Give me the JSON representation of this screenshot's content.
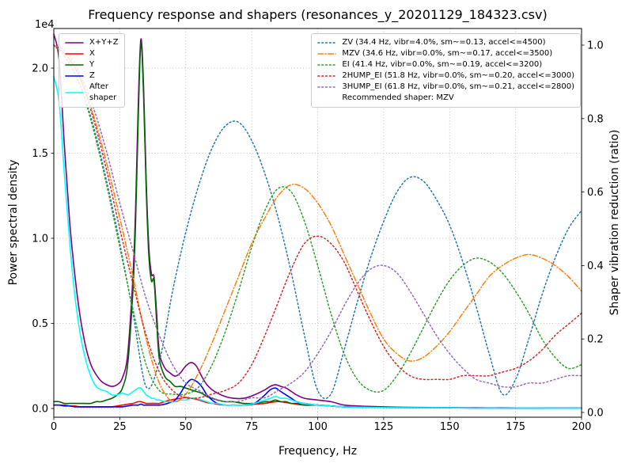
{
  "chart_data": {
    "type": "line",
    "title": "Frequency response and shapers (resonances_y_20201129_184323.csv)",
    "x_label": "Frequency, Hz",
    "x_ticks": [
      0,
      25,
      50,
      75,
      100,
      125,
      150,
      175,
      200
    ],
    "x_range": [
      0,
      200
    ],
    "grid": true,
    "y_left": {
      "label": "Power spectral density",
      "offset_text": "1e4",
      "ticks": [
        0.0,
        0.5,
        1.0,
        1.5,
        2.0
      ],
      "range": [
        -0.05,
        2.23
      ],
      "units": "1e4"
    },
    "y_right": {
      "label": "Shaper vibration reduction (ratio)",
      "ticks": [
        0.0,
        0.2,
        0.4,
        0.6,
        0.8,
        1.0
      ],
      "range": [
        -0.013,
        1.045
      ]
    },
    "psd": {
      "x": [
        0,
        2,
        4,
        6,
        8,
        10,
        12,
        14,
        16,
        18,
        20,
        22,
        24,
        26,
        28,
        30,
        31,
        32,
        33,
        34,
        35,
        36,
        37,
        38,
        39,
        40,
        42,
        44,
        46,
        48,
        50,
        52,
        54,
        56,
        58,
        60,
        62,
        65,
        68,
        72,
        76,
        80,
        82,
        84,
        86,
        88,
        90,
        92,
        95,
        100,
        105,
        110,
        115,
        120,
        130,
        140,
        150,
        160,
        170,
        180,
        190,
        200
      ],
      "series": [
        {
          "name": "X+Y+Z",
          "color": "#800080",
          "style": "solid",
          "values": [
            2.2,
            2.05,
            1.55,
            1.1,
            0.78,
            0.54,
            0.37,
            0.26,
            0.2,
            0.16,
            0.14,
            0.13,
            0.14,
            0.18,
            0.32,
            0.78,
            1.18,
            1.78,
            2.17,
            1.9,
            1.35,
            0.95,
            0.79,
            0.77,
            0.55,
            0.33,
            0.24,
            0.21,
            0.19,
            0.21,
            0.25,
            0.27,
            0.25,
            0.19,
            0.14,
            0.11,
            0.09,
            0.07,
            0.06,
            0.06,
            0.08,
            0.11,
            0.13,
            0.14,
            0.13,
            0.12,
            0.1,
            0.08,
            0.06,
            0.05,
            0.04,
            0.02,
            0.015,
            0.012,
            0.008,
            0.006,
            0.005,
            0.004,
            0.004,
            0.003,
            0.003,
            0.003
          ]
        },
        {
          "name": "X",
          "color": "#ff0000",
          "style": "solid",
          "values": [
            0.02,
            0.02,
            0.02,
            0.015,
            0.015,
            0.01,
            0.01,
            0.01,
            0.01,
            0.01,
            0.01,
            0.01,
            0.015,
            0.02,
            0.025,
            0.03,
            0.035,
            0.04,
            0.04,
            0.035,
            0.03,
            0.03,
            0.03,
            0.03,
            0.03,
            0.03,
            0.04,
            0.05,
            0.055,
            0.06,
            0.065,
            0.06,
            0.055,
            0.045,
            0.035,
            0.03,
            0.025,
            0.02,
            0.02,
            0.02,
            0.025,
            0.03,
            0.035,
            0.04,
            0.04,
            0.035,
            0.03,
            0.025,
            0.02,
            0.02,
            0.015,
            0.01,
            0.01,
            0.008,
            0.006,
            0.005,
            0.004,
            0.004,
            0.003,
            0.003,
            0.003,
            0.003
          ]
        },
        {
          "name": "Y",
          "color": "#006400",
          "style": "solid",
          "values": [
            0.04,
            0.04,
            0.03,
            0.03,
            0.03,
            0.03,
            0.03,
            0.03,
            0.04,
            0.04,
            0.05,
            0.06,
            0.08,
            0.12,
            0.26,
            0.7,
            1.1,
            1.7,
            2.15,
            1.85,
            1.3,
            0.9,
            0.75,
            0.75,
            0.5,
            0.29,
            0.19,
            0.16,
            0.13,
            0.13,
            0.12,
            0.11,
            0.1,
            0.09,
            0.07,
            0.06,
            0.05,
            0.04,
            0.04,
            0.03,
            0.03,
            0.04,
            0.04,
            0.05,
            0.04,
            0.04,
            0.03,
            0.03,
            0.02,
            0.02,
            0.015,
            0.01,
            0.01,
            0.008,
            0.006,
            0.005,
            0.004,
            0.003,
            0.003,
            0.002,
            0.002,
            0.002
          ]
        },
        {
          "name": "Z",
          "color": "#0000ff",
          "style": "solid",
          "values": [
            0.02,
            0.02,
            0.015,
            0.015,
            0.01,
            0.01,
            0.01,
            0.01,
            0.01,
            0.01,
            0.01,
            0.01,
            0.01,
            0.01,
            0.015,
            0.02,
            0.02,
            0.02,
            0.025,
            0.02,
            0.02,
            0.02,
            0.02,
            0.02,
            0.02,
            0.02,
            0.025,
            0.035,
            0.05,
            0.09,
            0.14,
            0.17,
            0.16,
            0.13,
            0.08,
            0.05,
            0.03,
            0.02,
            0.02,
            0.02,
            0.03,
            0.08,
            0.11,
            0.12,
            0.1,
            0.08,
            0.06,
            0.04,
            0.03,
            0.02,
            0.015,
            0.01,
            0.008,
            0.006,
            0.005,
            0.004,
            0.004,
            0.003,
            0.003,
            0.003,
            0.002,
            0.002
          ]
        },
        {
          "name": "After shaper",
          "color": "#00ffff",
          "style": "solid",
          "values": [
            1.95,
            1.8,
            1.38,
            0.98,
            0.66,
            0.44,
            0.29,
            0.19,
            0.13,
            0.11,
            0.1,
            0.08,
            0.08,
            0.09,
            0.08,
            0.1,
            0.11,
            0.12,
            0.12,
            0.1,
            0.08,
            0.07,
            0.06,
            0.06,
            0.05,
            0.05,
            0.04,
            0.04,
            0.04,
            0.05,
            0.05,
            0.06,
            0.06,
            0.05,
            0.04,
            0.03,
            0.03,
            0.02,
            0.02,
            0.02,
            0.03,
            0.05,
            0.06,
            0.07,
            0.06,
            0.06,
            0.05,
            0.04,
            0.03,
            0.02,
            0.015,
            0.01,
            0.008,
            0.006,
            0.005,
            0.004,
            0.004,
            0.003,
            0.003,
            0.003,
            0.002,
            0.002
          ]
        }
      ]
    },
    "shapers": {
      "x": [
        0,
        5,
        10,
        15,
        20,
        25,
        30,
        35,
        40,
        45,
        50,
        55,
        60,
        65,
        70,
        75,
        80,
        85,
        90,
        95,
        100,
        105,
        110,
        115,
        120,
        125,
        130,
        135,
        140,
        145,
        150,
        155,
        160,
        165,
        170,
        175,
        180,
        185,
        190,
        195,
        200
      ],
      "series": [
        {
          "name": "ZV",
          "freq_hz": 34.4,
          "vibr": "4.0%",
          "smoothing": 0.13,
          "max_accel": 4500,
          "color": "#1f77b4",
          "style": "dotted",
          "values": [
            1.0,
            0.96,
            0.89,
            0.78,
            0.63,
            0.46,
            0.27,
            0.07,
            0.14,
            0.33,
            0.49,
            0.62,
            0.72,
            0.78,
            0.79,
            0.74,
            0.65,
            0.53,
            0.38,
            0.21,
            0.06,
            0.05,
            0.17,
            0.3,
            0.42,
            0.52,
            0.6,
            0.64,
            0.63,
            0.58,
            0.51,
            0.41,
            0.29,
            0.16,
            0.05,
            0.09,
            0.2,
            0.32,
            0.42,
            0.5,
            0.55
          ]
        },
        {
          "name": "MZV",
          "freq_hz": 34.6,
          "vibr": "0.0%",
          "smoothing": 0.17,
          "max_accel": 3500,
          "color": "#ff7f0e",
          "style": "dashdot",
          "values": [
            1.0,
            0.97,
            0.91,
            0.81,
            0.68,
            0.53,
            0.37,
            0.2,
            0.08,
            0.03,
            0.05,
            0.11,
            0.19,
            0.28,
            0.37,
            0.46,
            0.53,
            0.59,
            0.62,
            0.61,
            0.57,
            0.51,
            0.43,
            0.35,
            0.27,
            0.2,
            0.16,
            0.14,
            0.15,
            0.18,
            0.22,
            0.27,
            0.32,
            0.37,
            0.4,
            0.42,
            0.43,
            0.42,
            0.4,
            0.37,
            0.33
          ]
        },
        {
          "name": "EI",
          "freq_hz": 41.4,
          "vibr": "0.0%",
          "smoothing": 0.19,
          "max_accel": 3200,
          "color": "#2ca02c",
          "style": "dotted",
          "values": [
            1.0,
            0.96,
            0.89,
            0.77,
            0.62,
            0.45,
            0.28,
            0.13,
            0.06,
            0.05,
            0.05,
            0.07,
            0.13,
            0.22,
            0.33,
            0.45,
            0.55,
            0.61,
            0.6,
            0.52,
            0.4,
            0.27,
            0.16,
            0.09,
            0.06,
            0.06,
            0.1,
            0.16,
            0.23,
            0.3,
            0.36,
            0.4,
            0.42,
            0.41,
            0.38,
            0.33,
            0.27,
            0.2,
            0.15,
            0.12,
            0.13
          ]
        },
        {
          "name": "2HUMP_EI",
          "freq_hz": 51.8,
          "vibr": "0.0%",
          "smoothing": 0.2,
          "max_accel": 3000,
          "color": "#d62728",
          "style": "dotted",
          "values": [
            1.0,
            0.97,
            0.91,
            0.8,
            0.66,
            0.5,
            0.35,
            0.21,
            0.11,
            0.06,
            0.04,
            0.04,
            0.05,
            0.06,
            0.08,
            0.13,
            0.21,
            0.3,
            0.39,
            0.46,
            0.48,
            0.46,
            0.41,
            0.33,
            0.25,
            0.18,
            0.13,
            0.1,
            0.09,
            0.09,
            0.09,
            0.1,
            0.1,
            0.1,
            0.11,
            0.12,
            0.14,
            0.17,
            0.21,
            0.24,
            0.27
          ]
        },
        {
          "name": "3HUMP_EI",
          "freq_hz": 61.8,
          "vibr": "0.0%",
          "smoothing": 0.21,
          "max_accel": 2800,
          "color": "#9467bd",
          "style": "dotted",
          "values": [
            1.0,
            0.98,
            0.92,
            0.83,
            0.71,
            0.57,
            0.44,
            0.31,
            0.21,
            0.13,
            0.08,
            0.06,
            0.04,
            0.03,
            0.03,
            0.04,
            0.04,
            0.06,
            0.08,
            0.11,
            0.16,
            0.22,
            0.29,
            0.35,
            0.39,
            0.4,
            0.38,
            0.33,
            0.27,
            0.21,
            0.16,
            0.12,
            0.09,
            0.08,
            0.07,
            0.07,
            0.08,
            0.08,
            0.09,
            0.1,
            0.1
          ]
        }
      ]
    },
    "recommended_shaper": "MZV"
  },
  "legend_psd": {
    "items": [
      {
        "label": "X+Y+Z"
      },
      {
        "label": "X"
      },
      {
        "label": "Y"
      },
      {
        "label": "Z"
      },
      {
        "label": "After\nshaper"
      }
    ]
  },
  "legend_shapers": {
    "items": [
      {
        "label": "ZV (34.4 Hz, vibr=4.0%, sm~=0.13, accel<=4500)"
      },
      {
        "label": "MZV (34.6 Hz, vibr=0.0%, sm~=0.17, accel<=3500)"
      },
      {
        "label": "EI (41.4 Hz, vibr=0.0%, sm~=0.19, accel<=3200)"
      },
      {
        "label": "2HUMP_EI (51.8 Hz, vibr=0.0%, sm~=0.20, accel<=3000)"
      },
      {
        "label": "3HUMP_EI (61.8 Hz, vibr=0.0%, sm~=0.21, accel<=2800)"
      }
    ],
    "note": "Recommended shaper: MZV"
  }
}
